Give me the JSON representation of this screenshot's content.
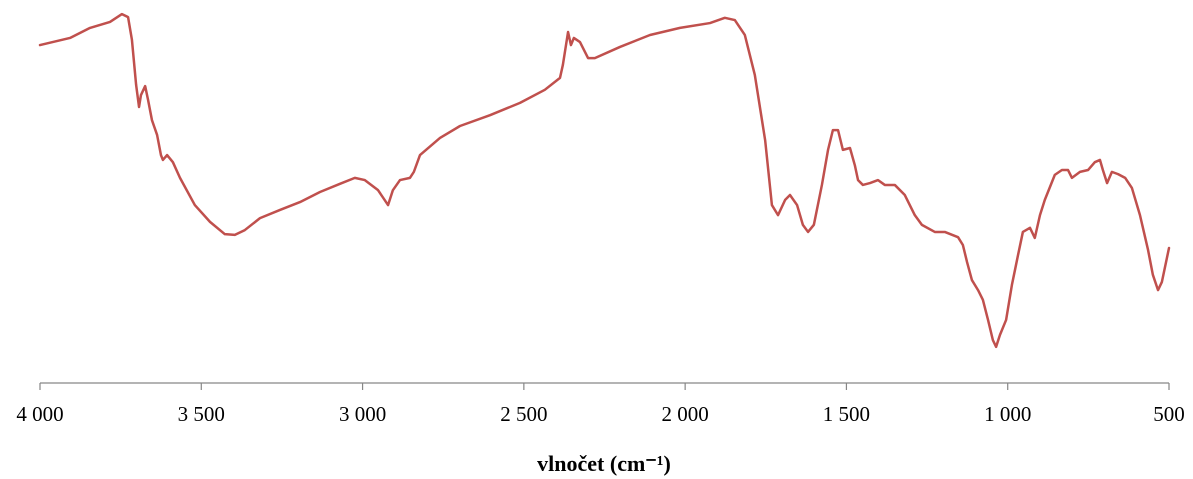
{
  "chart_data": {
    "type": "line",
    "xlabel": "vlnočet (cm⁻¹)",
    "xlim": [
      4000,
      500
    ],
    "xticks": [
      {
        "value": 4000,
        "label": "4 000"
      },
      {
        "value": 3500,
        "label": "3 500"
      },
      {
        "value": 3000,
        "label": "3 000"
      },
      {
        "value": 2500,
        "label": "2 500"
      },
      {
        "value": 2000,
        "label": "2 000"
      },
      {
        "value": 1500,
        "label": "1 500"
      },
      {
        "value": 1000,
        "label": "1 000"
      },
      500
    ],
    "ylim": [
      0,
      100
    ],
    "color": "#c0504d",
    "x": [
      4000,
      3907,
      3845,
      3783,
      3746,
      3727,
      3715,
      3702,
      3693,
      3687,
      3674,
      3665,
      3653,
      3637,
      3625,
      3619,
      3606,
      3588,
      3566,
      3520,
      3473,
      3427,
      3396,
      3365,
      3318,
      3256,
      3194,
      3132,
      3070,
      3024,
      2993,
      2952,
      2921,
      2906,
      2884,
      2853,
      2841,
      2822,
      2760,
      2698,
      2605,
      2512,
      2435,
      2388,
      2379,
      2363,
      2354,
      2345,
      2326,
      2301,
      2280,
      2202,
      2109,
      2016,
      1923,
      1877,
      1846,
      1815,
      1784,
      1752,
      1731,
      1712,
      1690,
      1675,
      1653,
      1635,
      1619,
      1601,
      1576,
      1557,
      1542,
      1526,
      1511,
      1489,
      1474,
      1464,
      1449,
      1427,
      1402,
      1381,
      1350,
      1319,
      1288,
      1266,
      1226,
      1195,
      1154,
      1139,
      1126,
      1111,
      1092,
      1077,
      1061,
      1046,
      1036,
      1024,
      1005,
      987,
      968,
      953,
      931,
      916,
      900,
      885,
      854,
      832,
      813,
      801,
      776,
      751,
      730,
      714,
      705,
      692,
      677,
      658,
      636,
      615,
      590,
      565,
      550,
      534,
      522,
      500
    ],
    "values": [
      90.6,
      92.5,
      95.2,
      96.8,
      98.9,
      98.1,
      92.0,
      79.9,
      74.0,
      77.2,
      79.6,
      75.9,
      70.5,
      66.5,
      61.1,
      59.8,
      61.1,
      59.2,
      55.0,
      47.7,
      43.2,
      39.9,
      39.7,
      41.0,
      44.2,
      46.4,
      48.5,
      51.2,
      53.4,
      55.0,
      54.4,
      51.7,
      47.7,
      51.7,
      54.4,
      55.0,
      56.6,
      61.1,
      65.7,
      68.9,
      71.8,
      75.1,
      78.6,
      81.8,
      85.3,
      94.1,
      90.6,
      92.5,
      91.4,
      87.1,
      87.1,
      90.1,
      93.3,
      95.2,
      96.5,
      97.9,
      97.3,
      93.3,
      82.6,
      65.1,
      47.7,
      45.0,
      49.1,
      50.4,
      47.7,
      42.4,
      40.5,
      42.4,
      53.1,
      62.5,
      67.8,
      67.8,
      62.5,
      63.0,
      58.4,
      54.4,
      53.1,
      53.6,
      54.4,
      53.1,
      53.1,
      50.4,
      45.0,
      42.4,
      40.5,
      40.5,
      39.1,
      37.0,
      32.4,
      27.6,
      24.9,
      22.3,
      16.9,
      11.5,
      9.7,
      12.9,
      16.9,
      26.3,
      34.3,
      40.5,
      41.6,
      38.9,
      45.0,
      49.1,
      55.8,
      57.1,
      57.1,
      55.0,
      56.6,
      57.1,
      59.2,
      59.8,
      57.1,
      53.6,
      56.6,
      56.0,
      55.0,
      52.3,
      45.0,
      35.7,
      29.0,
      24.9,
      27.1,
      36.2
    ]
  }
}
